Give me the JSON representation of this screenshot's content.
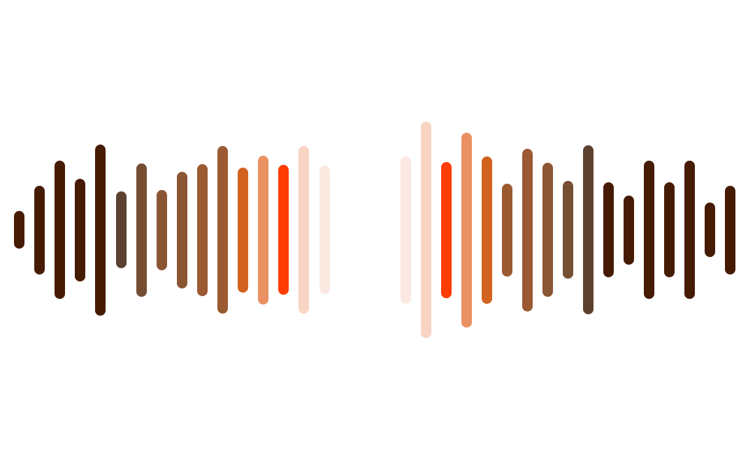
{
  "colors": {
    "darkest": "#461b03",
    "dark_brown": "#5d4130",
    "brown": "#754e34",
    "medium_brown": "#8b5634",
    "sienna": "#9b5a31",
    "dark_orange": "#d2621f",
    "light_orange": "#e99162",
    "red_orange": "#ff3c02",
    "pale_peach": "#f8d4c4",
    "very_pale_peach": "#fbe8e0"
  },
  "left_wave": [
    {
      "color": "darkest",
      "level": 0.22
    },
    {
      "color": "darkest",
      "level": 0.52
    },
    {
      "color": "darkest",
      "level": 0.81
    },
    {
      "color": "darkest",
      "level": 0.6
    },
    {
      "color": "darkest",
      "level": 1.0
    },
    {
      "color": "dark_brown",
      "level": 0.45
    },
    {
      "color": "brown",
      "level": 0.78
    },
    {
      "color": "medium_brown",
      "level": 0.47
    },
    {
      "color": "medium_brown",
      "level": 0.68
    },
    {
      "color": "sienna",
      "level": 0.77
    },
    {
      "color": "sienna",
      "level": 0.98
    },
    {
      "color": "dark_orange",
      "level": 0.73
    },
    {
      "color": "light_orange",
      "level": 0.87
    },
    {
      "color": "red_orange",
      "level": 0.76
    },
    {
      "color": "pale_peach",
      "level": 0.98
    },
    {
      "color": "very_pale_peach",
      "level": 0.75
    }
  ],
  "right_wave": [
    {
      "color": "very_pale_peach",
      "level": 0.68
    },
    {
      "color": "pale_peach",
      "level": 1.0
    },
    {
      "color": "red_orange",
      "level": 0.63
    },
    {
      "color": "light_orange",
      "level": 0.9
    },
    {
      "color": "dark_orange",
      "level": 0.68
    },
    {
      "color": "sienna",
      "level": 0.43
    },
    {
      "color": "sienna",
      "level": 0.75
    },
    {
      "color": "medium_brown",
      "level": 0.62
    },
    {
      "color": "brown",
      "level": 0.45
    },
    {
      "color": "dark_brown",
      "level": 0.78
    },
    {
      "color": "darkest",
      "level": 0.44
    },
    {
      "color": "darkest",
      "level": 0.32
    },
    {
      "color": "darkest",
      "level": 0.64
    },
    {
      "color": "darkest",
      "level": 0.44
    },
    {
      "color": "darkest",
      "level": 0.64
    },
    {
      "color": "darkest",
      "level": 0.25
    },
    {
      "color": "darkest",
      "level": 0.41
    }
  ]
}
